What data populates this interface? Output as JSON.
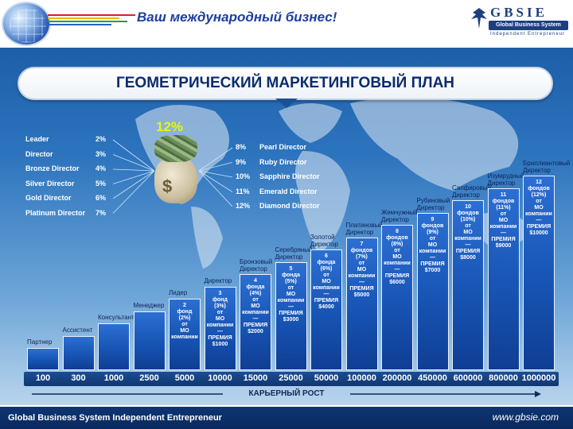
{
  "header": {
    "slogan": "Ваш международный бизнес!",
    "logo_title": "GBSIE",
    "logo_sub": "Global Business System",
    "logo_tag": "Independent Entrepreneur"
  },
  "banner": {
    "title": "ГЕОМЕТРИЧЕСКИЙ МАРКЕТИНГОВЫЙ ПЛАН"
  },
  "center_pct": "12%",
  "left_levels": [
    {
      "name": "Leader",
      "pct": "2%"
    },
    {
      "name": "Director",
      "pct": "3%"
    },
    {
      "name": "Bronze Director",
      "pct": "4%"
    },
    {
      "name": "Silver Director",
      "pct": "5%"
    },
    {
      "name": "Gold Director",
      "pct": "6%"
    },
    {
      "name": "Platinum Director",
      "pct": "7%"
    }
  ],
  "right_levels": [
    {
      "pct": "8%",
      "name": "Pearl Director"
    },
    {
      "pct": "9%",
      "name": "Ruby Director"
    },
    {
      "pct": "10%",
      "name": "Sapphire Director"
    },
    {
      "pct": "11%",
      "name": "Emerald Director"
    },
    {
      "pct": "12%",
      "name": "Diamond Director"
    }
  ],
  "bars": [
    {
      "rank": "Партнер",
      "lines": []
    },
    {
      "rank": "Ассистент",
      "lines": []
    },
    {
      "rank": "Консультант",
      "lines": []
    },
    {
      "rank": "Менеджер",
      "lines": []
    },
    {
      "rank": "Лидер",
      "lines": [
        "2",
        "фонд",
        "(2%)",
        "от",
        "МО",
        "компании"
      ]
    },
    {
      "rank": "Директор",
      "lines": [
        "3",
        "фонд",
        "(3%)",
        "от",
        "МО",
        "компании",
        "—",
        "ПРЕМИЯ",
        "$1000"
      ]
    },
    {
      "rank": "Бронзовый Директор",
      "lines": [
        "4",
        "фонда",
        "(4%)",
        "от",
        "МО",
        "компании",
        "—",
        "ПРЕМИЯ",
        "$2000"
      ]
    },
    {
      "rank": "Серебряный Директор",
      "lines": [
        "5",
        "фонда",
        "(5%)",
        "от",
        "МО",
        "компании",
        "—",
        "ПРЕМИЯ",
        "$3000"
      ]
    },
    {
      "rank": "Золотой Директор",
      "lines": [
        "6",
        "фонда",
        "(6%)",
        "от",
        "МО",
        "компании",
        "—",
        "ПРЕМИЯ",
        "$4000"
      ]
    },
    {
      "rank": "Платиновый Директор",
      "lines": [
        "7",
        "фондов",
        "(7%)",
        "от",
        "МО",
        "компании",
        "—",
        "ПРЕМИЯ",
        "$5000"
      ]
    },
    {
      "rank": "Жемчужный Директор",
      "lines": [
        "8",
        "фондов",
        "(8%)",
        "от",
        "МО",
        "компании",
        "—",
        "ПРЕМИЯ",
        "$6000"
      ]
    },
    {
      "rank": "Рубиновый Директор",
      "lines": [
        "9",
        "фондов",
        "(9%)",
        "от",
        "МО",
        "компании",
        "—",
        "ПРЕМИЯ",
        "$7000"
      ]
    },
    {
      "rank": "Сапфировый Директор",
      "lines": [
        "10",
        "фондов",
        "(10%)",
        "от",
        "МО",
        "компании",
        "—",
        "ПРЕМИЯ",
        "$8000"
      ]
    },
    {
      "rank": "Изумрудный Директор",
      "lines": [
        "11",
        "фондов",
        "(11%)",
        "от",
        "МО",
        "компании",
        "—",
        "ПРЕМИЯ",
        "$9000"
      ]
    },
    {
      "rank": "Бриллиантовый Директор",
      "lines": [
        "12",
        "фондов",
        "(12%)",
        "от",
        "МО",
        "компании",
        "—",
        "ПРЕМИЯ",
        "$10000"
      ]
    }
  ],
  "ticks": [
    "100",
    "300",
    "1000",
    "2500",
    "5000",
    "10000",
    "15000",
    "25000",
    "50000",
    "100000",
    "200000",
    "450000",
    "600000",
    "800000",
    "1000000"
  ],
  "growth_label": "КАРЬЕРНЫЙ РОСТ",
  "footer": {
    "left": "Global Business System  Independent Entrepreneur",
    "right": "www.gbsie.com"
  },
  "colors": {
    "accent": "#1754b4",
    "header_text": "#1c3fa0",
    "highlight": "#e8f700"
  }
}
